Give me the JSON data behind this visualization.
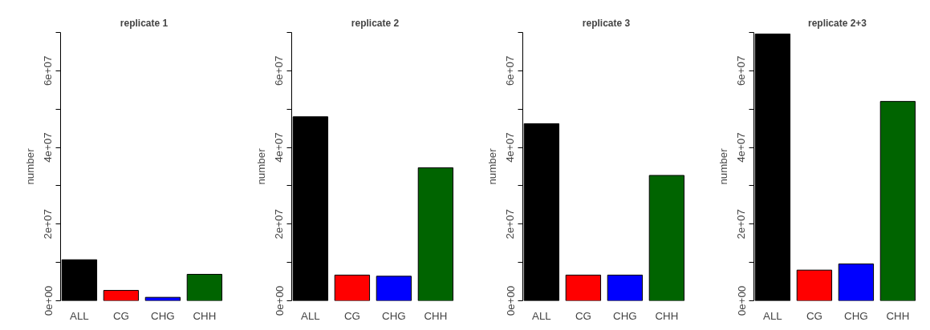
{
  "chart_data": [
    {
      "type": "bar",
      "title": "replicate 1",
      "ylabel": "number",
      "categories": [
        "ALL",
        "CG",
        "CHG",
        "CHH"
      ],
      "values": [
        10700000,
        2700000,
        900000,
        6900000
      ],
      "colors": [
        "#000000",
        "#ff0000",
        "#0000ff",
        "#006400"
      ],
      "ylim": [
        0,
        70000000
      ],
      "yticks": [
        {
          "value": 0,
          "label": "0e+00"
        },
        {
          "value": 10000000,
          "label": null
        },
        {
          "value": 20000000,
          "label": "2e+07"
        },
        {
          "value": 30000000,
          "label": null
        },
        {
          "value": 40000000,
          "label": "4e+07"
        },
        {
          "value": 50000000,
          "label": null
        },
        {
          "value": 60000000,
          "label": "6e+07"
        },
        {
          "value": 70000000,
          "label": null
        }
      ]
    },
    {
      "type": "bar",
      "title": "replicate 2",
      "ylabel": "number",
      "categories": [
        "ALL",
        "CG",
        "CHG",
        "CHH"
      ],
      "values": [
        48000000,
        6700000,
        6400000,
        34700000
      ],
      "colors": [
        "#000000",
        "#ff0000",
        "#0000ff",
        "#006400"
      ],
      "ylim": [
        0,
        70000000
      ],
      "yticks": [
        {
          "value": 0,
          "label": "0e+00"
        },
        {
          "value": 10000000,
          "label": null
        },
        {
          "value": 20000000,
          "label": "2e+07"
        },
        {
          "value": 30000000,
          "label": null
        },
        {
          "value": 40000000,
          "label": "4e+07"
        },
        {
          "value": 50000000,
          "label": null
        },
        {
          "value": 60000000,
          "label": "6e+07"
        },
        {
          "value": 70000000,
          "label": null
        }
      ]
    },
    {
      "type": "bar",
      "title": "replicate 3",
      "ylabel": "number",
      "categories": [
        "ALL",
        "CG",
        "CHG",
        "CHH"
      ],
      "values": [
        46200000,
        6700000,
        6700000,
        32700000
      ],
      "colors": [
        "#000000",
        "#ff0000",
        "#0000ff",
        "#006400"
      ],
      "ylim": [
        0,
        70000000
      ],
      "yticks": [
        {
          "value": 0,
          "label": "0e+00"
        },
        {
          "value": 10000000,
          "label": null
        },
        {
          "value": 20000000,
          "label": "2e+07"
        },
        {
          "value": 30000000,
          "label": null
        },
        {
          "value": 40000000,
          "label": "4e+07"
        },
        {
          "value": 50000000,
          "label": null
        },
        {
          "value": 60000000,
          "label": "6e+07"
        },
        {
          "value": 70000000,
          "label": null
        }
      ]
    },
    {
      "type": "bar",
      "title": "replicate 2+3",
      "ylabel": "number",
      "categories": [
        "ALL",
        "CG",
        "CHG",
        "CHH"
      ],
      "values": [
        69600000,
        8000000,
        9600000,
        52000000
      ],
      "colors": [
        "#000000",
        "#ff0000",
        "#0000ff",
        "#006400"
      ],
      "ylim": [
        0,
        70000000
      ],
      "yticks": [
        {
          "value": 0,
          "label": "0e+00"
        },
        {
          "value": 10000000,
          "label": null
        },
        {
          "value": 20000000,
          "label": "2e+07"
        },
        {
          "value": 30000000,
          "label": null
        },
        {
          "value": 40000000,
          "label": "4e+07"
        },
        {
          "value": 50000000,
          "label": null
        },
        {
          "value": 60000000,
          "label": "6e+07"
        },
        {
          "value": 70000000,
          "label": null
        }
      ]
    }
  ]
}
